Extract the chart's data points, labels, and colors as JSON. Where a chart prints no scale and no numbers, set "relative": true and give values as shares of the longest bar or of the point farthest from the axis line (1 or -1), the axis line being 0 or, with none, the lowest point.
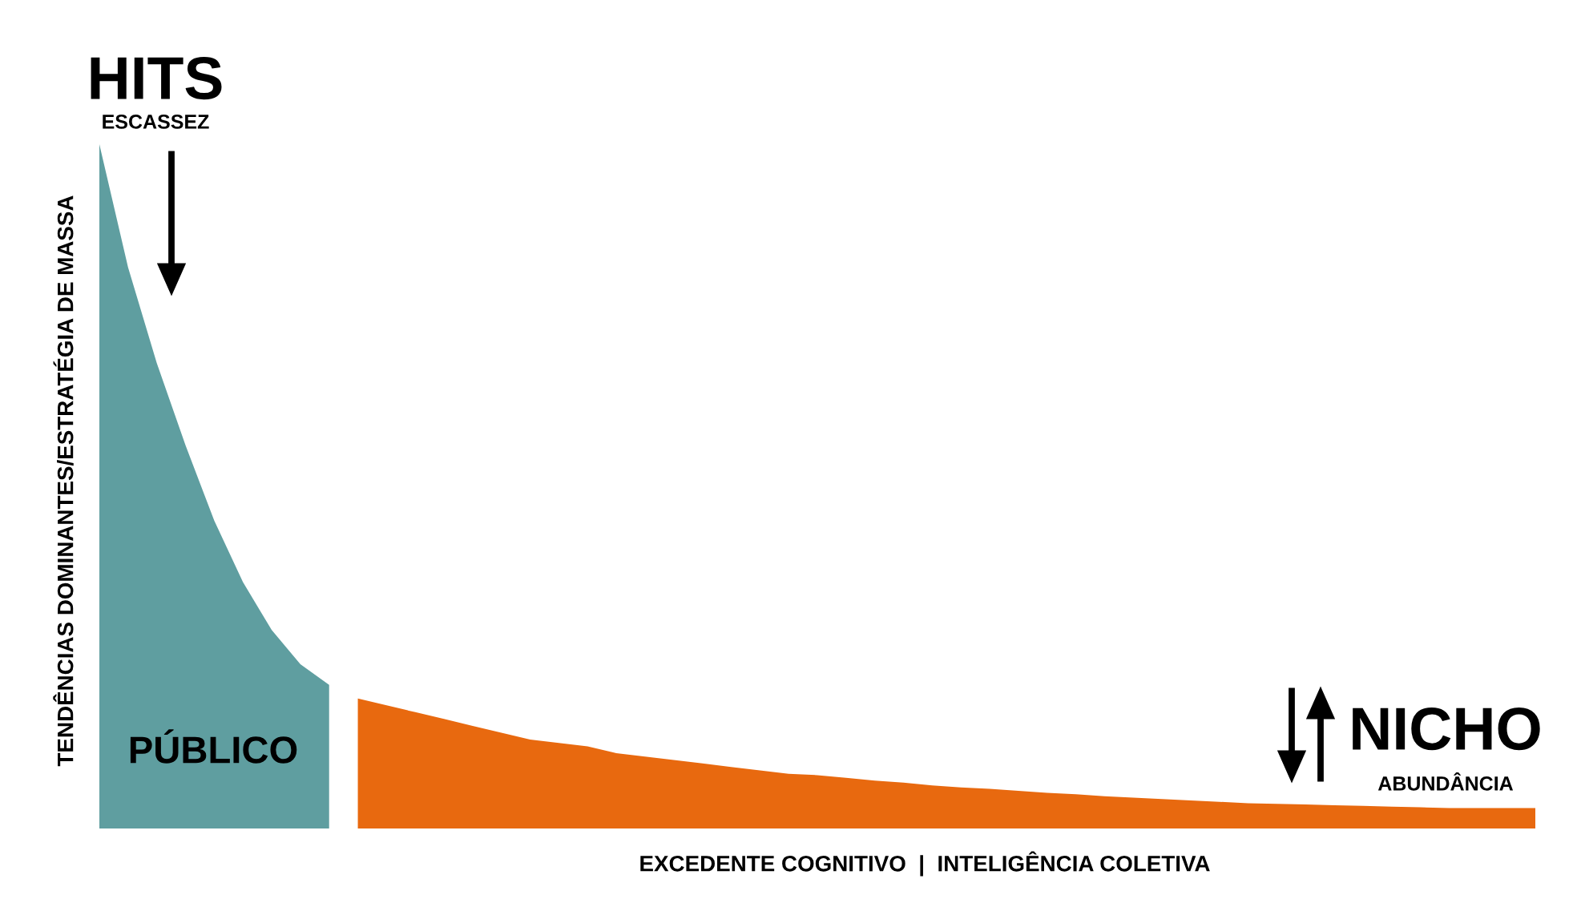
{
  "chart_data": {
    "type": "area",
    "relative": true,
    "grid": false,
    "xlabel": "EXCEDENTE COGNITIVO  |  INTELIGÊNCIA COLETIVA",
    "ylabel": "TENDÊNCIAS DOMINANTES/ESTRATÉGIA DE MASSA",
    "annotations": [
      "HITS",
      "ESCASSEZ",
      "PÚBLICO",
      "NICHO",
      "ABUNDÂNCIA"
    ],
    "categories": [
      null,
      null,
      null,
      null,
      null,
      null,
      null,
      null,
      null,
      null,
      null,
      null,
      null,
      null,
      null,
      null,
      null,
      null,
      null,
      null,
      null,
      null,
      null,
      null,
      null,
      null,
      null,
      null,
      null,
      null,
      null,
      null,
      null,
      null,
      null,
      null,
      null,
      null,
      null,
      null,
      null,
      null,
      null,
      null,
      null,
      null,
      null,
      null,
      null,
      null,
      null
    ],
    "series": [
      {
        "color": "#5f9ea0",
        "values": [
          1,
          0.82,
          0.68,
          0.56,
          0.45,
          0.36,
          0.29,
          0.24,
          0.21,
          null,
          null,
          null,
          null,
          null,
          null,
          null,
          null,
          null,
          null,
          null,
          null,
          null,
          null,
          null,
          null,
          null,
          null,
          null,
          null,
          null,
          null,
          null,
          null,
          null,
          null,
          null,
          null,
          null,
          null,
          null,
          null,
          null,
          null,
          null,
          null,
          null,
          null,
          null,
          null,
          null,
          null
        ]
      },
      {
        "color": "#e8690f",
        "values": [
          null,
          null,
          null,
          null,
          null,
          null,
          null,
          null,
          null,
          0.19,
          0.18,
          0.17,
          0.16,
          0.15,
          0.14,
          0.13,
          0.125,
          0.12,
          0.11,
          0.105,
          0.1,
          0.095,
          0.09,
          0.085,
          0.08,
          0.078,
          0.074,
          0.07,
          0.067,
          0.063,
          0.06,
          0.058,
          0.055,
          0.052,
          0.05,
          0.047,
          0.045,
          0.043,
          0.041,
          0.039,
          0.037,
          0.036,
          0.035,
          0.034,
          0.033,
          0.032,
          0.031,
          0.03,
          0.03,
          0.03,
          0.03
        ]
      }
    ]
  }
}
